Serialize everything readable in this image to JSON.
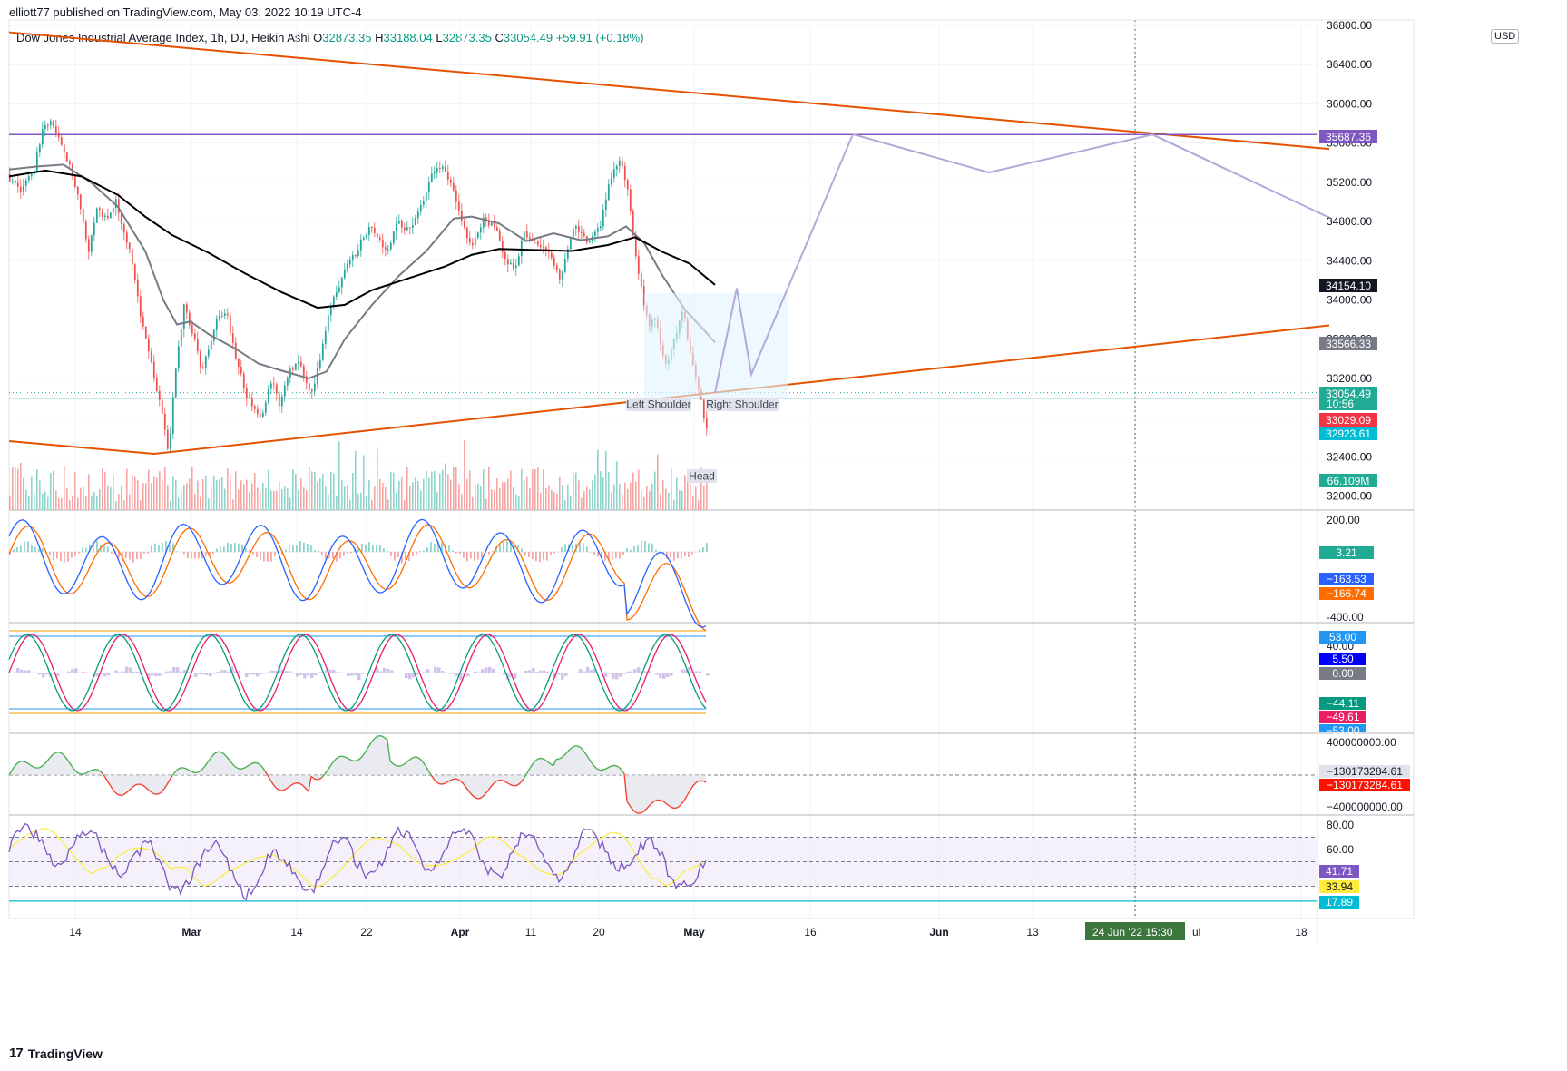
{
  "header": {
    "published": "elliott77 published on TradingView.com, May 03, 2022 10:19 UTC-4",
    "symbol": "Dow Jones Industrial Average Index, 1h, DJ, Heikin Ashi",
    "ohlc": [
      {
        "k": "O",
        "v": "32873.35"
      },
      {
        "k": "H",
        "v": "33188.04"
      },
      {
        "k": "L",
        "v": "32873.35"
      },
      {
        "k": "C",
        "v": "33054.49"
      }
    ],
    "change": "+59.91 (+0.18%)",
    "currency": "USD"
  },
  "footer": {
    "brand": "TradingView"
  },
  "colors": {
    "up": "#26a69a",
    "down": "#ef5350",
    "trend": "#e65100",
    "resistance": "#7e57c2",
    "projection": "#b3a8d8",
    "ma_long": "#000000",
    "ma_short": "#787b86"
  },
  "chart_data": [
    {
      "type": "candlestick",
      "name": "price",
      "x_axis_ticks": [
        "14",
        "Mar",
        "14",
        "22",
        "Apr",
        "11",
        "20",
        "May",
        "16",
        "Jun",
        "13",
        "24 Jun '22   15:30",
        "18"
      ],
      "y_ticks": [
        "36800.00",
        "36400.00",
        "36000.00",
        "35600.00",
        "35200.00",
        "34800.00",
        "34400.00",
        "34000.00",
        "33600.00",
        "33200.00",
        "32800.00",
        "32400.00",
        "32000.00"
      ],
      "ylim": [
        31870,
        36840
      ],
      "badges": [
        {
          "label": "35687.36",
          "value": 35687.36,
          "color": "#7e57c2"
        },
        {
          "label": "34154.10",
          "value": 34154.1,
          "color": "#131722"
        },
        {
          "label": "33566.33",
          "value": 33566.33,
          "color": "#787b86"
        },
        {
          "label": "33054.49",
          "sub": "10:56",
          "value": 33054.49,
          "color": "#22ab94"
        },
        {
          "label": "33029.09",
          "value": 33029.09,
          "color": "#f23645"
        },
        {
          "label": "32923.61",
          "value": 32923.61,
          "color": "#00bcd4"
        },
        {
          "label": "66.109M",
          "value": 32130,
          "color": "#22ab94"
        }
      ],
      "annotations": [
        "Left Shoulder",
        "Right Shoulder",
        "Head"
      ],
      "close_path": [
        [
          0,
          35280
        ],
        [
          15,
          35120
        ],
        [
          30,
          35350
        ],
        [
          40,
          35750
        ],
        [
          50,
          35820
        ],
        [
          60,
          35600
        ],
        [
          70,
          35350
        ],
        [
          80,
          35000
        ],
        [
          90,
          34500
        ],
        [
          100,
          34950
        ],
        [
          110,
          34800
        ],
        [
          120,
          35000
        ],
        [
          135,
          34500
        ],
        [
          150,
          33700
        ],
        [
          160,
          33300
        ],
        [
          170,
          32900
        ],
        [
          178,
          32420
        ],
        [
          185,
          33200
        ],
        [
          195,
          33950
        ],
        [
          205,
          33650
        ],
        [
          215,
          33250
        ],
        [
          222,
          33500
        ],
        [
          232,
          33820
        ],
        [
          242,
          33880
        ],
        [
          252,
          33400
        ],
        [
          265,
          33000
        ],
        [
          280,
          32800
        ],
        [
          292,
          33200
        ],
        [
          300,
          32950
        ],
        [
          310,
          33250
        ],
        [
          322,
          33350
        ],
        [
          335,
          33000
        ],
        [
          345,
          33400
        ],
        [
          355,
          33900
        ],
        [
          370,
          34250
        ],
        [
          385,
          34500
        ],
        [
          400,
          34750
        ],
        [
          410,
          34600
        ],
        [
          420,
          34500
        ],
        [
          430,
          34800
        ],
        [
          445,
          34700
        ],
        [
          458,
          35000
        ],
        [
          468,
          35300
        ],
        [
          480,
          35350
        ],
        [
          490,
          35150
        ],
        [
          500,
          34850
        ],
        [
          512,
          34500
        ],
        [
          525,
          34850
        ],
        [
          540,
          34700
        ],
        [
          550,
          34400
        ],
        [
          560,
          34300
        ],
        [
          570,
          34700
        ],
        [
          580,
          34600
        ],
        [
          595,
          34500
        ],
        [
          610,
          34200
        ],
        [
          625,
          34800
        ],
        [
          640,
          34550
        ],
        [
          655,
          34800
        ],
        [
          665,
          35250
        ],
        [
          675,
          35450
        ],
        [
          685,
          35100
        ],
        [
          692,
          34500
        ],
        [
          700,
          34050
        ],
        [
          708,
          33700
        ],
        [
          715,
          33850
        ],
        [
          725,
          33300
        ],
        [
          735,
          33600
        ],
        [
          745,
          33900
        ],
        [
          752,
          33500
        ],
        [
          760,
          33200
        ],
        [
          768,
          32800
        ],
        [
          773,
          32600
        ],
        [
          778,
          33054
        ]
      ],
      "ma_long": [
        [
          0,
          35260
        ],
        [
          40,
          35320
        ],
        [
          80,
          35260
        ],
        [
          120,
          35070
        ],
        [
          150,
          34850
        ],
        [
          180,
          34660
        ],
        [
          220,
          34480
        ],
        [
          260,
          34270
        ],
        [
          300,
          34080
        ],
        [
          340,
          33920
        ],
        [
          370,
          33950
        ],
        [
          400,
          34100
        ],
        [
          440,
          34220
        ],
        [
          480,
          34340
        ],
        [
          510,
          34460
        ],
        [
          540,
          34520
        ],
        [
          580,
          34510
        ],
        [
          620,
          34500
        ],
        [
          660,
          34560
        ],
        [
          690,
          34640
        ],
        [
          720,
          34490
        ],
        [
          750,
          34370
        ],
        [
          778,
          34154
        ]
      ],
      "ma_short": [
        [
          0,
          35330
        ],
        [
          30,
          35360
        ],
        [
          60,
          35380
        ],
        [
          90,
          35200
        ],
        [
          120,
          34950
        ],
        [
          150,
          34500
        ],
        [
          170,
          34000
        ],
        [
          185,
          33750
        ],
        [
          200,
          33780
        ],
        [
          220,
          33650
        ],
        [
          250,
          33500
        ],
        [
          275,
          33350
        ],
        [
          300,
          33280
        ],
        [
          330,
          33200
        ],
        [
          350,
          33270
        ],
        [
          370,
          33600
        ],
        [
          400,
          33950
        ],
        [
          430,
          34250
        ],
        [
          460,
          34500
        ],
        [
          490,
          34830
        ],
        [
          510,
          34850
        ],
        [
          540,
          34780
        ],
        [
          570,
          34600
        ],
        [
          600,
          34680
        ],
        [
          630,
          34610
        ],
        [
          660,
          34650
        ],
        [
          680,
          34750
        ],
        [
          700,
          34580
        ],
        [
          720,
          34250
        ],
        [
          745,
          33900
        ],
        [
          765,
          33700
        ],
        [
          778,
          33566
        ]
      ],
      "projection": [
        [
          778,
          33054
        ],
        [
          802,
          34120
        ],
        [
          818,
          33240
        ],
        [
          930,
          35690
        ],
        [
          1080,
          35300
        ],
        [
          1260,
          35687
        ],
        [
          1455,
          34840
        ]
      ],
      "trend_upper": [
        [
          0,
          36730
        ],
        [
          1455,
          35540
        ]
      ],
      "trend_lower": [
        [
          0,
          32560
        ],
        [
          160,
          32430
        ],
        [
          1455,
          33740
        ]
      ],
      "resistance": 35687.36,
      "support": 32998
    },
    {
      "type": "histogram",
      "name": "volume",
      "badge": "66.109M"
    },
    {
      "type": "line",
      "name": "macd",
      "y_ticks": [
        "200.00",
        "-400.00"
      ],
      "ylim": [
        -600,
        300
      ],
      "badges": [
        {
          "label": "3.21",
          "color": "#22ab94"
        },
        {
          "label": "−163.53",
          "color": "#2962ff"
        },
        {
          "label": "−166.74",
          "color": "#ff6d00"
        }
      ]
    },
    {
      "type": "line",
      "name": "stoch-rsi",
      "y_ticks": [
        "40.00"
      ],
      "badges": [
        {
          "label": "53.00",
          "color": "#2196f3"
        },
        {
          "label": "5.50",
          "color": "#0000ff"
        },
        {
          "label": "0.00",
          "color": "#787b86"
        },
        {
          "label": "−44.11",
          "color": "#089981"
        },
        {
          "label": "−49.61",
          "color": "#e91e63"
        },
        {
          "label": "−53.00",
          "color": "#2196f3"
        }
      ]
    },
    {
      "type": "area",
      "name": "money-flow",
      "y_ticks": [
        "400000000.00",
        "−400000000.00"
      ],
      "badges": [
        {
          "label": "−130173284.61",
          "color": "#e0e3eb"
        },
        {
          "label": "−130173284.61",
          "color": "#ff1100"
        }
      ]
    },
    {
      "type": "line",
      "name": "rsi",
      "y_ticks": [
        "80.00",
        "60.00"
      ],
      "ylim": [
        12,
        88
      ],
      "badges": [
        {
          "label": "41.71",
          "color": "#7e57c2"
        },
        {
          "label": "33.94",
          "color": "#ffeb3b"
        },
        {
          "label": "17.89",
          "color": "#00bcd4"
        }
      ]
    }
  ]
}
